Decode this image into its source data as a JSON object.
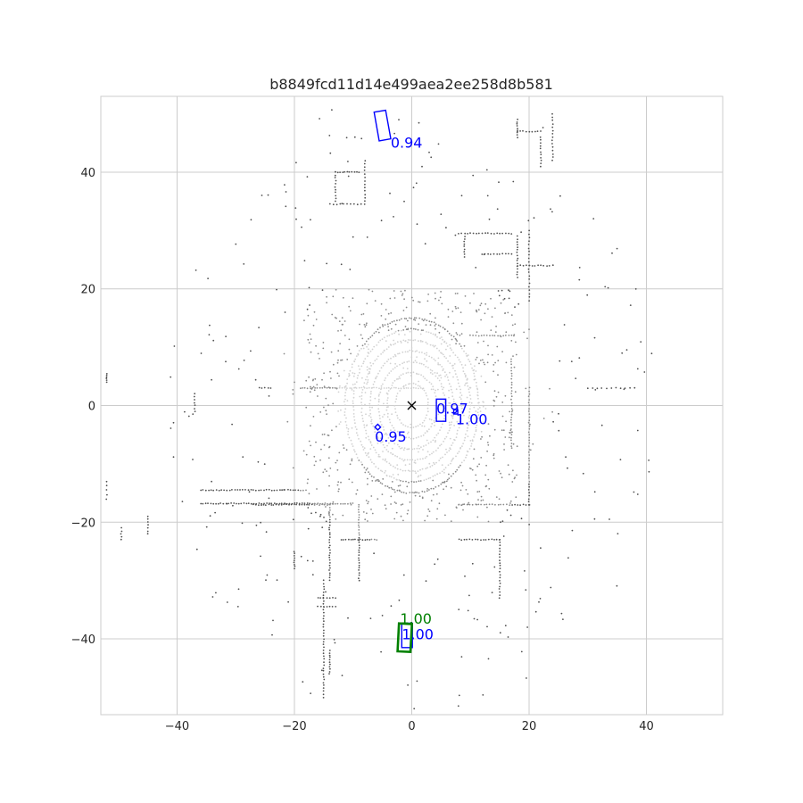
{
  "chart_data": {
    "type": "scatter",
    "title": "b8849fcd11d14e499aea2ee258d8b581",
    "xlabel": "",
    "ylabel": "",
    "xlim": [
      -53,
      53
    ],
    "ylim": [
      -53,
      53
    ],
    "x_ticks": [
      -40,
      -20,
      0,
      20,
      40
    ],
    "y_ticks": [
      -40,
      -20,
      0,
      20,
      40
    ],
    "x_tick_labels": [
      "−40",
      "−20",
      "0",
      "20",
      "40"
    ],
    "y_tick_labels": [
      "−40",
      "−20",
      "0",
      "20",
      "40"
    ],
    "grid": true,
    "ego_marker": {
      "x": 0,
      "y": 0,
      "symbol": "x"
    },
    "colors": {
      "prediction": "#0000ff",
      "ground_truth": "#008000",
      "points_far": "#505050",
      "points_mid": "#8c8c8c",
      "points_near": "#d2d2d2",
      "ego": "#000000",
      "grid": "#cccccc"
    },
    "boxes": [
      {
        "kind": "prediction",
        "label": "0.94",
        "cx": -5.0,
        "cy": 48.0,
        "w": 2.0,
        "l": 5.0,
        "yaw_deg": 10,
        "label_x": -3.6,
        "label_y": 44.2
      },
      {
        "kind": "prediction",
        "label": "0.97",
        "cx": 5.0,
        "cy": -0.8,
        "w": 1.6,
        "l": 3.8,
        "yaw_deg": 0,
        "label_x": 4.2,
        "label_y": -1.4
      },
      {
        "kind": "prediction",
        "label": "1.00",
        "cx": 7.5,
        "cy": -1.1,
        "w": 0.7,
        "l": 0.7,
        "yaw_deg": 0,
        "label_x": 7.5,
        "label_y": -3.2
      },
      {
        "kind": "prediction",
        "label": "0.95",
        "cx": -5.8,
        "cy": -3.7,
        "w": 0.7,
        "l": 0.7,
        "yaw_deg": 45,
        "label_x": -6.3,
        "label_y": -6.2
      },
      {
        "kind": "prediction",
        "label": "1.00",
        "cx": -0.8,
        "cy": -39.4,
        "w": 1.8,
        "l": 4.2,
        "yaw_deg": 0,
        "label_x": -1.7,
        "label_y": -40.1
      },
      {
        "kind": "ground_truth",
        "label": "1.00",
        "cx": -1.2,
        "cy": -39.8,
        "w": 2.2,
        "l": 4.8,
        "yaw_deg": -3,
        "label_x": -2.0,
        "label_y": -37.4
      }
    ]
  }
}
